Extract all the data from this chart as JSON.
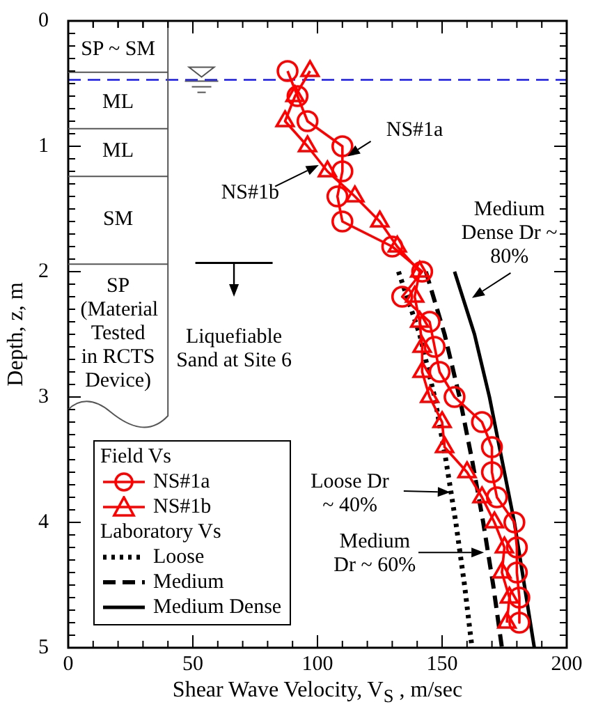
{
  "chart_data": {
    "type": "line",
    "xlabel": "Shear Wave Velocity, V$_{S}$ , m/sec",
    "ylabel": "Depth, z, m",
    "xlim": [
      0,
      200
    ],
    "ylim": [
      5,
      0
    ],
    "xticks": [
      0,
      {
        "value": 10,
        "label": null
      },
      {
        "value": 20,
        "label": null
      },
      {
        "value": 30,
        "label": null
      },
      {
        "value": 40,
        "label": null
      },
      50,
      {
        "value": 60,
        "label": null
      },
      {
        "value": 70,
        "label": null
      },
      {
        "value": 80,
        "label": null
      },
      {
        "value": 90,
        "label": null
      },
      100,
      {
        "value": 110,
        "label": null
      },
      {
        "value": 120,
        "label": null
      },
      {
        "value": 130,
        "label": null
      },
      {
        "value": 140,
        "label": null
      },
      150,
      {
        "value": 160,
        "label": null
      },
      {
        "value": 170,
        "label": null
      },
      {
        "value": 180,
        "label": null
      },
      {
        "value": 190,
        "label": null
      },
      200
    ],
    "yticks": [
      0,
      {
        "value": 0.1,
        "label": null
      },
      {
        "value": 0.2,
        "label": null
      },
      {
        "value": 0.3,
        "label": null
      },
      {
        "value": 0.4,
        "label": null
      },
      {
        "value": 0.5,
        "label": null
      },
      {
        "value": 0.6,
        "label": null
      },
      {
        "value": 0.7,
        "label": null
      },
      {
        "value": 0.8,
        "label": null
      },
      {
        "value": 0.9,
        "label": null
      },
      1,
      {
        "value": 1.1,
        "label": null
      },
      {
        "value": 1.2,
        "label": null
      },
      {
        "value": 1.3,
        "label": null
      },
      {
        "value": 1.4,
        "label": null
      },
      {
        "value": 1.5,
        "label": null
      },
      {
        "value": 1.6,
        "label": null
      },
      {
        "value": 1.7,
        "label": null
      },
      {
        "value": 1.8,
        "label": null
      },
      {
        "value": 1.9,
        "label": null
      },
      2,
      {
        "value": 2.1,
        "label": null
      },
      {
        "value": 2.2,
        "label": null
      },
      {
        "value": 2.3,
        "label": null
      },
      {
        "value": 2.4,
        "label": null
      },
      {
        "value": 2.5,
        "label": null
      },
      {
        "value": 2.6,
        "label": null
      },
      {
        "value": 2.7,
        "label": null
      },
      {
        "value": 2.8,
        "label": null
      },
      {
        "value": 2.9,
        "label": null
      },
      3,
      {
        "value": 3.1,
        "label": null
      },
      {
        "value": 3.2,
        "label": null
      },
      {
        "value": 3.3,
        "label": null
      },
      {
        "value": 3.4,
        "label": null
      },
      {
        "value": 3.5,
        "label": null
      },
      {
        "value": 3.6,
        "label": null
      },
      {
        "value": 3.7,
        "label": null
      },
      {
        "value": 3.8,
        "label": null
      },
      {
        "value": 3.9,
        "label": null
      },
      4,
      {
        "value": 4.1,
        "label": null
      },
      {
        "value": 4.2,
        "label": null
      },
      {
        "value": 4.3,
        "label": null
      },
      {
        "value": 4.4,
        "label": null
      },
      {
        "value": 4.5,
        "label": null
      },
      {
        "value": 4.6,
        "label": null
      },
      {
        "value": 4.7,
        "label": null
      },
      {
        "value": 4.8,
        "label": null
      },
      {
        "value": 4.9,
        "label": null
      },
      5
    ],
    "series": [
      {
        "name": "NS#1a",
        "color": "#ff0000",
        "marker": "circle",
        "line_style": "solid",
        "x": [
          88,
          92,
          96,
          110,
          110,
          108,
          110,
          130,
          142,
          134,
          145,
          147,
          149,
          155,
          166,
          170,
          170,
          172,
          179,
          180,
          180,
          181,
          181
        ],
        "values": [
          0.4,
          0.6,
          0.8,
          1.0,
          1.2,
          1.4,
          1.6,
          1.8,
          2.0,
          2.2,
          2.4,
          2.6,
          2.8,
          3.0,
          3.2,
          3.4,
          3.6,
          3.8,
          4.0,
          4.2,
          4.4,
          4.6,
          4.8
        ]
      },
      {
        "name": "NS#1b",
        "color": "#ff0000",
        "marker": "triangle",
        "line_style": "solid",
        "x": [
          97,
          91,
          87,
          96,
          104,
          115,
          125,
          132,
          141,
          139,
          141,
          142,
          142,
          145,
          150,
          151,
          160,
          166,
          171,
          175,
          174,
          177,
          176
        ],
        "values": [
          0.4,
          0.6,
          0.8,
          1.0,
          1.2,
          1.4,
          1.6,
          1.8,
          2.0,
          2.2,
          2.4,
          2.6,
          2.8,
          3.0,
          3.2,
          3.4,
          3.6,
          3.8,
          4.0,
          4.2,
          4.4,
          4.6,
          4.8
        ]
      },
      {
        "name": "Loose",
        "color": "#000000",
        "marker": "none",
        "line_style": "dotted",
        "x": [
          132.5,
          141,
          147,
          151.5,
          155.5,
          159,
          162
        ],
        "values": [
          2.0,
          2.5,
          3.0,
          3.5,
          4.0,
          4.5,
          5.0
        ]
      },
      {
        "name": "Medium",
        "color": "#000000",
        "marker": "none",
        "line_style": "dashed",
        "x": [
          143.5,
          151,
          157,
          162,
          166.5,
          170.5,
          174
        ],
        "values": [
          2.0,
          2.5,
          3.0,
          3.5,
          4.0,
          4.5,
          5.0
        ]
      },
      {
        "name": "Medium Dense",
        "color": "#000000",
        "marker": "none",
        "line_style": "solid",
        "x": [
          155,
          163,
          169,
          174,
          179,
          183,
          187
        ],
        "values": [
          2.0,
          2.5,
          3.0,
          3.5,
          4.0,
          4.5,
          5.0
        ]
      }
    ],
    "ref_lines": [
      {
        "axis": "y",
        "value": 0.47,
        "color": "#0000ff",
        "line_style": "dashed"
      }
    ],
    "annotations": [
      "SP ~ SM",
      "ML",
      "ML",
      "SM",
      "SP (Material Tested in RCTS Device)",
      "Liquefiable Sand at Site 6",
      {
        "text": "NS#1a",
        "x": 112,
        "y": 1.08
      },
      {
        "text": "NS#1b",
        "x": 100.5,
        "y": 1.15
      },
      {
        "text": "Medium Dense Dr ~ 80%",
        "x": 162,
        "y": 2.21
      },
      {
        "text": "Loose Dr ~ 40%",
        "x": 153.3,
        "y": 3.76
      },
      "Medium Dr ~ 60%",
      "Field Vs",
      "Laboratory Vs"
    ],
    "legend": "bottom left"
  }
}
